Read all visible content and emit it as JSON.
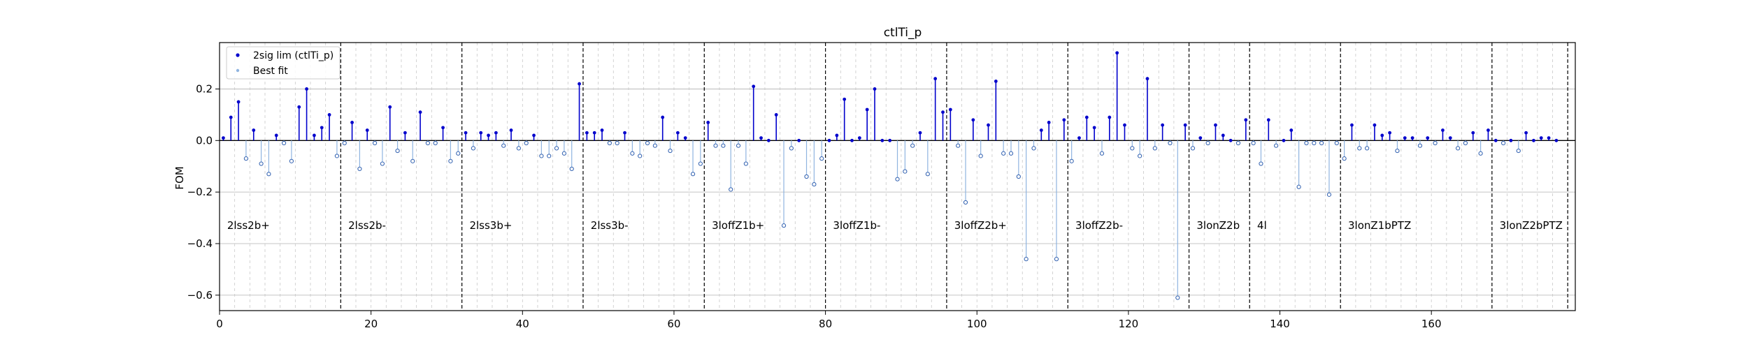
{
  "chart_data": {
    "type": "scatter",
    "title": "ctlTi_p",
    "xlabel": "",
    "ylabel": "FOM",
    "xlim": [
      0,
      179
    ],
    "ylim": [
      -0.66,
      0.38
    ],
    "xticks": [
      0,
      20,
      40,
      60,
      80,
      100,
      120,
      140,
      160
    ],
    "yticks": [
      -0.6,
      -0.4,
      -0.2,
      0.0,
      0.2
    ],
    "ytick_labels": [
      "−0.6",
      "−0.4",
      "−0.2",
      "0.0",
      "0.2"
    ],
    "grid": true,
    "legend_position": "top-left",
    "colors": {
      "sig": "#0000cc",
      "best": "#8fb4e0",
      "grid": "#b0b0b0",
      "zero": "#000000"
    },
    "series": [
      {
        "name": "2sig lim (ctlTi_p)",
        "values": [
          0.01,
          0.09,
          0.15,
          -0.07,
          0.04,
          -0.09,
          -0.13,
          0.02,
          -0.01,
          -0.08,
          0.13,
          0.2,
          0.02,
          0.05,
          0.1,
          -0.06,
          -0.01,
          0.07,
          -0.11,
          0.04,
          -0.01,
          -0.09,
          0.13,
          -0.04,
          0.03,
          -0.08,
          0.11,
          -0.01,
          -0.01,
          0.05,
          -0.08,
          -0.05,
          0.03,
          -0.03,
          0.03,
          0.02,
          0.03,
          -0.02,
          0.04,
          -0.03,
          -0.01,
          0.02,
          -0.06,
          -0.06,
          -0.03,
          -0.05,
          -0.11,
          0.22,
          0.03,
          0.03,
          0.04,
          -0.01,
          -0.01,
          0.03,
          -0.05,
          -0.06,
          -0.01,
          -0.02,
          0.09,
          -0.04,
          0.03,
          0.01,
          -0.13,
          -0.09,
          0.07,
          -0.02,
          -0.02,
          -0.19,
          -0.02,
          -0.09,
          0.21,
          0.01,
          0.0,
          0.1,
          -0.33,
          -0.03,
          0.0,
          -0.14,
          -0.17,
          -0.07,
          0.0,
          0.02,
          0.16,
          0.0,
          0.01,
          0.12,
          0.2,
          0.0,
          0.0,
          -0.15,
          -0.12,
          -0.02,
          0.03,
          -0.13,
          0.24,
          0.11,
          0.12,
          -0.02,
          -0.24,
          0.08,
          -0.06,
          0.06,
          0.23,
          -0.05,
          -0.05,
          -0.14,
          -0.46,
          -0.03,
          0.04,
          0.07,
          -0.46,
          0.08,
          -0.08,
          0.01,
          0.09,
          0.05,
          -0.05,
          0.09,
          0.34,
          0.06,
          -0.03,
          -0.06,
          0.24,
          -0.03,
          0.06,
          -0.01,
          -0.61,
          0.06,
          -0.03,
          0.01,
          -0.01,
          0.06,
          0.02,
          0.0,
          -0.01,
          0.08,
          -0.01,
          -0.09,
          0.08,
          -0.02,
          0.0,
          0.04,
          -0.18,
          -0.01,
          -0.01,
          -0.01,
          -0.21,
          -0.01,
          -0.07,
          0.06,
          -0.03,
          -0.03,
          0.06,
          0.02,
          0.03,
          -0.04,
          0.01,
          0.01,
          -0.02,
          0.01,
          -0.01,
          0.04,
          0.01,
          -0.03,
          -0.01,
          0.03,
          -0.05,
          0.04,
          0.0,
          -0.01,
          0.0,
          -0.04,
          0.03,
          0.0,
          0.01,
          0.01,
          0.0
        ]
      },
      {
        "name": "Best fit",
        "values": []
      }
    ],
    "regions": [
      {
        "label": "2lss2b+",
        "start": 0,
        "end": 16
      },
      {
        "label": "2lss2b-",
        "start": 16,
        "end": 32
      },
      {
        "label": "2lss3b+",
        "start": 32,
        "end": 48
      },
      {
        "label": "2lss3b-",
        "start": 48,
        "end": 64
      },
      {
        "label": "3loffZ1b+",
        "start": 64,
        "end": 80
      },
      {
        "label": "3loffZ1b-",
        "start": 80,
        "end": 96
      },
      {
        "label": "3loffZ2b+",
        "start": 96,
        "end": 112
      },
      {
        "label": "3loffZ2b-",
        "start": 112,
        "end": 128
      },
      {
        "label": "3lonZ2b",
        "start": 128,
        "end": 136
      },
      {
        "label": "4l",
        "start": 136,
        "end": 148
      },
      {
        "label": "3lonZ1bPTZ",
        "start": 148,
        "end": 168
      },
      {
        "label": "3lonZ2bPTZ",
        "start": 168,
        "end": 178
      }
    ],
    "region_label_y": -0.33
  }
}
